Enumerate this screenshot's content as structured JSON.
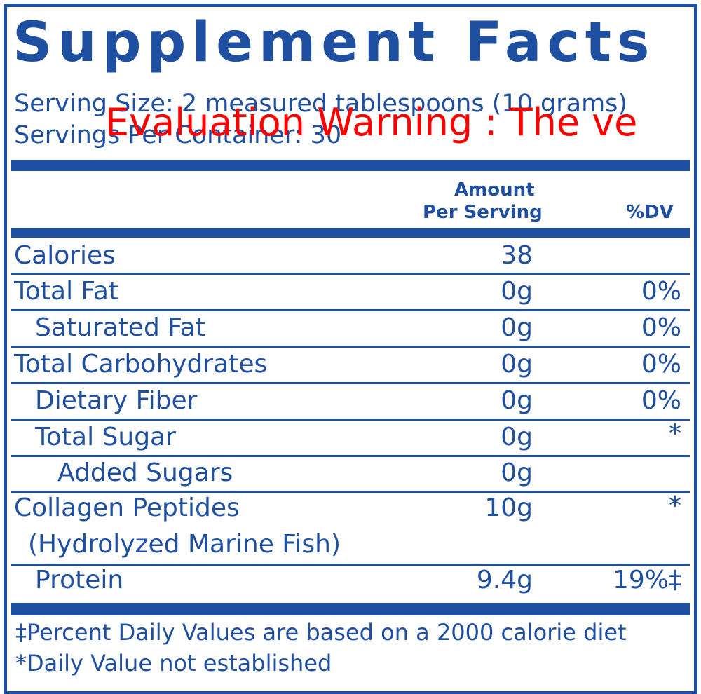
{
  "title": "Supplement Facts",
  "serving_size": "Serving Size: 2 measured tablespoons (10 grams)",
  "servings_per_container": "Servings Per Container: 30",
  "watermark": "Evaluation Warning : The ve",
  "header": {
    "amount_line1": "Amount",
    "amount_line2": "Per Serving",
    "dv": "%DV"
  },
  "rows": [
    {
      "name": "Calories",
      "amount": "38"
    },
    {
      "name": "Total Fat",
      "amount": "0g",
      "dv": "0%"
    },
    {
      "name": "Saturated Fat",
      "amount": "0g",
      "dv": "0%"
    },
    {
      "name": "Total Carbohydrates",
      "amount": "0g",
      "dv": "0%"
    },
    {
      "name": "Dietary Fiber",
      "amount": "0g",
      "dv": "0%"
    },
    {
      "name": "Total Sugar",
      "amount": "0g",
      "dv": "*"
    },
    {
      "name": "Added Sugars",
      "amount": "0g"
    },
    {
      "name": "Collagen Peptides",
      "name_line2": "(Hydrolyzed Marine Fish)",
      "amount": "10g",
      "dv": "*"
    },
    {
      "name": "Protein",
      "amount": "9.4g",
      "dv": "19%‡"
    }
  ],
  "footnotes": [
    "‡Percent Daily Values are based on a 2000 calorie diet",
    "*Daily Value not established"
  ]
}
